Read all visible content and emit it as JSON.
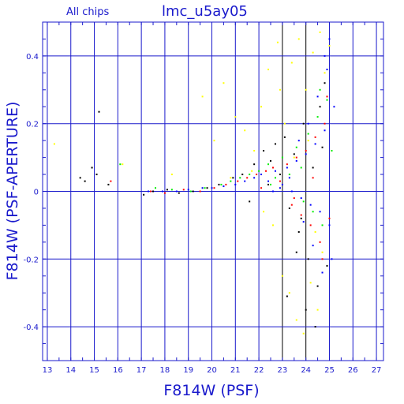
{
  "chart_data": {
    "type": "scatter",
    "title": "lmc_u5ay05",
    "subtitle": "All chips",
    "xlabel": "F814W (PSF)",
    "ylabel": "F814W (PSF-APERTURE)",
    "xlim": [
      12.8,
      27.3
    ],
    "ylim": [
      -0.5,
      0.5
    ],
    "x_ticks": [
      13,
      14,
      15,
      16,
      17,
      18,
      19,
      20,
      21,
      22,
      23,
      24,
      25,
      26,
      27
    ],
    "y_ticks": [
      -0.4,
      -0.2,
      0,
      0.2,
      0.4
    ],
    "y_tick_labels": [
      "-0.4",
      "-0.2",
      "0",
      "0.2",
      "0.4"
    ],
    "grid": true,
    "colors": {
      "axes": "#1a1acc",
      "text": "#1a1acc",
      "grid_dark": "#000000"
    },
    "series": [
      {
        "color": "#ffff00",
        "values": [
          [
            13.3,
            0.14
          ],
          [
            16.2,
            0.08
          ],
          [
            18.3,
            0.05
          ],
          [
            19.6,
            0.28
          ],
          [
            20.1,
            0.15
          ],
          [
            20.5,
            0.32
          ],
          [
            21.0,
            0.22
          ],
          [
            21.4,
            0.18
          ],
          [
            21.8,
            0.12
          ],
          [
            22.1,
            0.25
          ],
          [
            22.4,
            0.36
          ],
          [
            22.8,
            0.44
          ],
          [
            23.1,
            0.2
          ],
          [
            23.4,
            0.38
          ],
          [
            23.7,
            0.45
          ],
          [
            24.0,
            0.3
          ],
          [
            24.3,
            0.41
          ],
          [
            24.6,
            0.47
          ],
          [
            24.8,
            0.35
          ],
          [
            25.0,
            0.43
          ],
          [
            22.6,
            -0.1
          ],
          [
            23.0,
            -0.25
          ],
          [
            23.3,
            -0.3
          ],
          [
            23.6,
            -0.38
          ],
          [
            23.9,
            -0.42
          ],
          [
            24.2,
            -0.27
          ],
          [
            24.5,
            -0.35
          ],
          [
            24.7,
            -0.18
          ],
          [
            22.2,
            -0.06
          ],
          [
            21.7,
            0.06
          ],
          [
            20.8,
            0.04
          ],
          [
            23.5,
            0.1
          ],
          [
            24.1,
            0.15
          ],
          [
            24.4,
            -0.12
          ],
          [
            22.9,
            0.3
          ]
        ]
      },
      {
        "color": "#000000",
        "values": [
          [
            15.2,
            0.235
          ],
          [
            14.4,
            0.04
          ],
          [
            14.6,
            0.03
          ],
          [
            14.9,
            0.07
          ],
          [
            15.1,
            0.05
          ],
          [
            15.6,
            0.02
          ],
          [
            17.1,
            -0.01
          ],
          [
            17.5,
            0.0
          ],
          [
            18.1,
            0.005
          ],
          [
            18.6,
            -0.005
          ],
          [
            19.2,
            0.0
          ],
          [
            19.8,
            0.01
          ],
          [
            20.3,
            0.02
          ],
          [
            20.9,
            0.04
          ],
          [
            21.3,
            0.05
          ],
          [
            21.8,
            0.08
          ],
          [
            22.2,
            0.12
          ],
          [
            22.5,
            0.09
          ],
          [
            22.7,
            0.14
          ],
          [
            22.9,
            0.05
          ],
          [
            23.1,
            0.16
          ],
          [
            23.3,
            -0.05
          ],
          [
            23.5,
            0.11
          ],
          [
            23.7,
            -0.12
          ],
          [
            23.9,
            0.2
          ],
          [
            24.1,
            -0.2
          ],
          [
            24.3,
            0.07
          ],
          [
            24.5,
            -0.28
          ],
          [
            24.7,
            0.13
          ],
          [
            24.9,
            -0.22
          ],
          [
            23.2,
            -0.31
          ],
          [
            23.6,
            -0.18
          ],
          [
            24.0,
            -0.35
          ],
          [
            24.4,
            -0.4
          ],
          [
            24.6,
            0.25
          ],
          [
            24.8,
            0.32
          ],
          [
            22.4,
            0.02
          ],
          [
            21.6,
            -0.03
          ],
          [
            23.8,
            -0.08
          ]
        ]
      },
      {
        "color": "#ff0000",
        "values": [
          [
            15.7,
            0.03
          ],
          [
            17.4,
            0.0
          ],
          [
            18.0,
            -0.005
          ],
          [
            18.8,
            0.005
          ],
          [
            19.5,
            0.0
          ],
          [
            20.1,
            0.01
          ],
          [
            20.6,
            0.02
          ],
          [
            21.1,
            0.03
          ],
          [
            21.5,
            0.04
          ],
          [
            21.9,
            0.05
          ],
          [
            22.3,
            0.06
          ],
          [
            22.6,
            0.07
          ],
          [
            22.9,
            0.03
          ],
          [
            23.2,
            0.08
          ],
          [
            23.4,
            -0.04
          ],
          [
            23.6,
            0.1
          ],
          [
            23.8,
            -0.07
          ],
          [
            24.0,
            0.12
          ],
          [
            24.2,
            -0.1
          ],
          [
            24.4,
            0.16
          ],
          [
            24.6,
            -0.15
          ],
          [
            24.8,
            0.2
          ],
          [
            25.0,
            -0.08
          ],
          [
            24.9,
            0.28
          ],
          [
            24.7,
            -0.2
          ],
          [
            23.5,
            -0.02
          ],
          [
            22.1,
            0.01
          ],
          [
            24.3,
            0.04
          ]
        ]
      },
      {
        "color": "#00ee00",
        "values": [
          [
            16.1,
            0.08
          ],
          [
            17.6,
            0.01
          ],
          [
            18.3,
            0.005
          ],
          [
            19.1,
            0.0
          ],
          [
            19.7,
            0.01
          ],
          [
            20.4,
            0.02
          ],
          [
            20.8,
            0.03
          ],
          [
            21.2,
            0.04
          ],
          [
            21.6,
            0.05
          ],
          [
            22.0,
            0.06
          ],
          [
            22.4,
            0.08
          ],
          [
            22.7,
            0.04
          ],
          [
            23.0,
            0.1
          ],
          [
            23.3,
            0.05
          ],
          [
            23.6,
            0.13
          ],
          [
            23.9,
            -0.03
          ],
          [
            24.1,
            0.17
          ],
          [
            24.3,
            -0.06
          ],
          [
            24.5,
            0.22
          ],
          [
            24.7,
            -0.1
          ],
          [
            24.9,
            0.27
          ],
          [
            25.1,
            0.12
          ],
          [
            24.6,
            0.3
          ],
          [
            23.8,
            0.07
          ],
          [
            22.5,
            0.02
          ]
        ]
      },
      {
        "color": "#0000ff",
        "values": [
          [
            17.3,
            0.0
          ],
          [
            17.9,
            0.0
          ],
          [
            18.5,
            0.0
          ],
          [
            19.0,
            0.005
          ],
          [
            19.6,
            0.01
          ],
          [
            20.0,
            0.01
          ],
          [
            20.5,
            0.015
          ],
          [
            21.0,
            0.02
          ],
          [
            21.4,
            0.03
          ],
          [
            21.8,
            0.04
          ],
          [
            22.1,
            0.05
          ],
          [
            22.4,
            0.03
          ],
          [
            22.7,
            0.06
          ],
          [
            23.0,
            0.02
          ],
          [
            23.2,
            0.07
          ],
          [
            23.4,
            0.0
          ],
          [
            23.6,
            0.09
          ],
          [
            23.8,
            -0.02
          ],
          [
            24.0,
            0.11
          ],
          [
            24.2,
            -0.04
          ],
          [
            24.4,
            0.14
          ],
          [
            24.6,
            -0.06
          ],
          [
            24.8,
            0.18
          ],
          [
            25.0,
            -0.1
          ],
          [
            25.2,
            0.25
          ],
          [
            24.9,
            0.36
          ],
          [
            24.5,
            0.28
          ],
          [
            24.1,
            0.2
          ],
          [
            23.7,
            0.15
          ],
          [
            23.3,
            0.04
          ],
          [
            22.9,
            0.01
          ],
          [
            22.6,
            0.0
          ],
          [
            25.1,
            -0.2
          ],
          [
            24.7,
            -0.24
          ],
          [
            24.3,
            -0.16
          ],
          [
            23.9,
            -0.09
          ],
          [
            24.8,
            0.4
          ],
          [
            25.0,
            0.45
          ]
        ]
      }
    ]
  }
}
